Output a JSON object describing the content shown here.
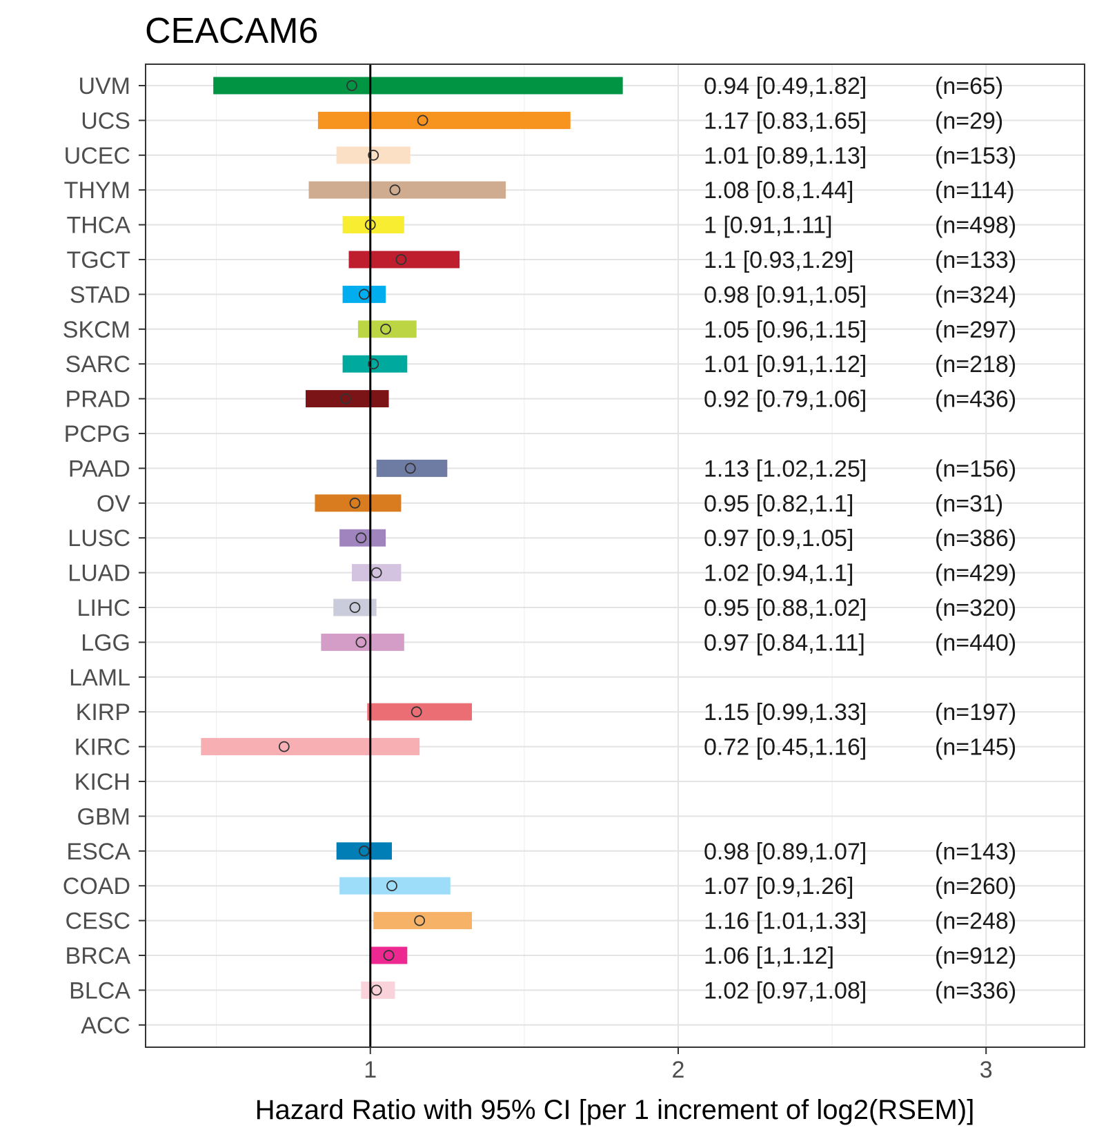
{
  "chart_data": {
    "type": "forest",
    "title": "CEACAM6",
    "xlabel": "Hazard Ratio with 95% CI [per 1 increment of log2(RSEM)]",
    "ylabel": "",
    "xlim": [
      0.27,
      3.32
    ],
    "xticks": [
      1,
      2,
      3
    ],
    "reference_line": 1,
    "grid": true,
    "rows": [
      {
        "label": "UVM",
        "hr": 0.94,
        "lo": 0.49,
        "hi": 1.82,
        "text": "0.94 [0.49,1.82]",
        "n": "(n=65)",
        "color": "#009443"
      },
      {
        "label": "UCS",
        "hr": 1.17,
        "lo": 0.83,
        "hi": 1.65,
        "text": "1.17 [0.83,1.65]",
        "n": "(n=29)",
        "color": "#F7941F"
      },
      {
        "label": "UCEC",
        "hr": 1.01,
        "lo": 0.89,
        "hi": 1.13,
        "text": "1.01 [0.89,1.13]",
        "n": "(n=153)",
        "color": "#FBE0C6"
      },
      {
        "label": "THYM",
        "hr": 1.08,
        "lo": 0.8,
        "hi": 1.44,
        "text": "1.08 [0.8,1.44]",
        "n": "(n=114)",
        "color": "#CFAC8F"
      },
      {
        "label": "THCA",
        "hr": 1,
        "lo": 0.91,
        "hi": 1.11,
        "text": "1 [0.91,1.11]",
        "n": "(n=498)",
        "color": "#F9ED32"
      },
      {
        "label": "TGCT",
        "hr": 1.1,
        "lo": 0.93,
        "hi": 1.29,
        "text": "1.1 [0.93,1.29]",
        "n": "(n=133)",
        "color": "#BE1E2D"
      },
      {
        "label": "STAD",
        "hr": 0.98,
        "lo": 0.91,
        "hi": 1.05,
        "text": "0.98 [0.91,1.05]",
        "n": "(n=324)",
        "color": "#00AEEF"
      },
      {
        "label": "SKCM",
        "hr": 1.05,
        "lo": 0.96,
        "hi": 1.15,
        "text": "1.05 [0.96,1.15]",
        "n": "(n=297)",
        "color": "#BBD642"
      },
      {
        "label": "SARC",
        "hr": 1.01,
        "lo": 0.91,
        "hi": 1.12,
        "text": "1.01 [0.91,1.12]",
        "n": "(n=218)",
        "color": "#00A99D"
      },
      {
        "label": "PRAD",
        "hr": 0.92,
        "lo": 0.79,
        "hi": 1.06,
        "text": "0.92 [0.79,1.06]",
        "n": "(n=436)",
        "color": "#7A1416"
      },
      {
        "label": "PCPG",
        "hr": null,
        "lo": null,
        "hi": null,
        "text": "",
        "n": "",
        "color": ""
      },
      {
        "label": "PAAD",
        "hr": 1.13,
        "lo": 1.02,
        "hi": 1.25,
        "text": "1.13 [1.02,1.25]",
        "n": "(n=156)",
        "color": "#6E7BA2"
      },
      {
        "label": "OV",
        "hr": 0.95,
        "lo": 0.82,
        "hi": 1.1,
        "text": "0.95 [0.82,1.1]",
        "n": "(n=31)",
        "color": "#D97C1F"
      },
      {
        "label": "LUSC",
        "hr": 0.97,
        "lo": 0.9,
        "hi": 1.05,
        "text": "0.97 [0.9,1.05]",
        "n": "(n=386)",
        "color": "#A084BD"
      },
      {
        "label": "LUAD",
        "hr": 1.02,
        "lo": 0.94,
        "hi": 1.1,
        "text": "1.02 [0.94,1.1]",
        "n": "(n=429)",
        "color": "#D3C3E0"
      },
      {
        "label": "LIHC",
        "hr": 0.95,
        "lo": 0.88,
        "hi": 1.02,
        "text": "0.95 [0.88,1.02]",
        "n": "(n=320)",
        "color": "#CACCDB"
      },
      {
        "label": "LGG",
        "hr": 0.97,
        "lo": 0.84,
        "hi": 1.11,
        "text": "0.97 [0.84,1.11]",
        "n": "(n=440)",
        "color": "#D49DC7"
      },
      {
        "label": "LAML",
        "hr": null,
        "lo": null,
        "hi": null,
        "text": "",
        "n": "",
        "color": ""
      },
      {
        "label": "KIRP",
        "hr": 1.15,
        "lo": 0.99,
        "hi": 1.33,
        "text": "1.15 [0.99,1.33]",
        "n": "(n=197)",
        "color": "#EA6E73"
      },
      {
        "label": "KIRC",
        "hr": 0.72,
        "lo": 0.45,
        "hi": 1.16,
        "text": "0.72 [0.45,1.16]",
        "n": "(n=145)",
        "color": "#F8AFB3"
      },
      {
        "label": "KICH",
        "hr": null,
        "lo": null,
        "hi": null,
        "text": "",
        "n": "",
        "color": ""
      },
      {
        "label": "GBM",
        "hr": null,
        "lo": null,
        "hi": null,
        "text": "",
        "n": "",
        "color": ""
      },
      {
        "label": "ESCA",
        "hr": 0.98,
        "lo": 0.89,
        "hi": 1.07,
        "text": "0.98 [0.89,1.07]",
        "n": "(n=143)",
        "color": "#007EB5"
      },
      {
        "label": "COAD",
        "hr": 1.07,
        "lo": 0.9,
        "hi": 1.26,
        "text": "1.07 [0.9,1.26]",
        "n": "(n=260)",
        "color": "#9EDDF9"
      },
      {
        "label": "CESC",
        "hr": 1.16,
        "lo": 1.01,
        "hi": 1.33,
        "text": "1.16 [1.01,1.33]",
        "n": "(n=248)",
        "color": "#F6B266"
      },
      {
        "label": "BRCA",
        "hr": 1.06,
        "lo": 1,
        "hi": 1.12,
        "text": "1.06 [1,1.12]",
        "n": "(n=912)",
        "color": "#ED2891"
      },
      {
        "label": "BLCA",
        "hr": 1.02,
        "lo": 0.97,
        "hi": 1.08,
        "text": "1.02 [0.97,1.08]",
        "n": "(n=336)",
        "color": "#FAD2D9"
      },
      {
        "label": "ACC",
        "hr": null,
        "lo": null,
        "hi": null,
        "text": "",
        "n": "",
        "color": ""
      }
    ]
  }
}
